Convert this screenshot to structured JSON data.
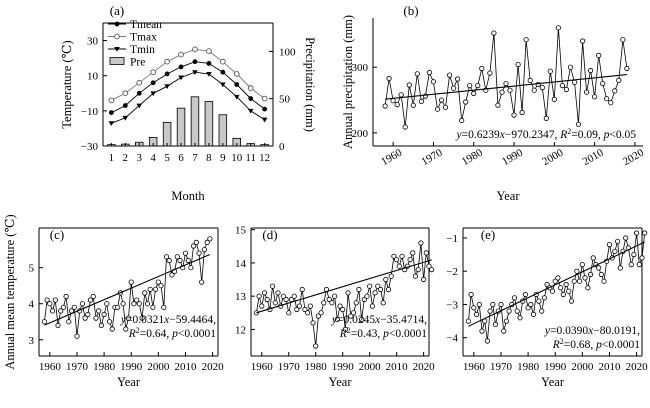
{
  "chart_data": [
    {
      "panel": "a",
      "type": "line+bar",
      "panel_label": "(a)",
      "xlabel": "Month",
      "ylabel": "Temperature (℃)",
      "y2label": "Precipitation (mm)",
      "categories": [
        "1",
        "2",
        "3",
        "4",
        "5",
        "6",
        "7",
        "8",
        "9",
        "10",
        "11",
        "12"
      ],
      "ylim": [
        -30,
        40
      ],
      "yticks": [
        -30,
        -10,
        10,
        30
      ],
      "y2lim": [
        0,
        130
      ],
      "y2ticks": [
        0,
        50,
        100
      ],
      "series": [
        {
          "name": "Tmean",
          "kind": "line",
          "marker": "filled-circle",
          "values": [
            -11,
            -7,
            0,
            6,
            11,
            15,
            18,
            17,
            12,
            5,
            -3,
            -9
          ]
        },
        {
          "name": "Tmax",
          "kind": "line",
          "marker": "open-circle",
          "values": [
            -4,
            0,
            6,
            12,
            18,
            22,
            25,
            24,
            18,
            11,
            3,
            -3
          ]
        },
        {
          "name": "Tmin",
          "kind": "line",
          "marker": "triangle",
          "values": [
            -17,
            -14,
            -7,
            0,
            4,
            9,
            12,
            11,
            5,
            -2,
            -10,
            -15
          ]
        },
        {
          "name": "Pre",
          "kind": "bar",
          "axis": "y2",
          "values": [
            1.5,
            2,
            4,
            9,
            25,
            40,
            52,
            47,
            33,
            8,
            2.5,
            1.5
          ]
        }
      ],
      "legend": {
        "position": "top-left",
        "entries": [
          "Tmean",
          "Tmax",
          "Tmin",
          "Pre"
        ]
      }
    },
    {
      "panel": "b",
      "type": "line",
      "panel_label": "(b)",
      "xlabel": "Year",
      "ylabel": "Annual precipitation (mm)",
      "xlim": [
        1955,
        2022
      ],
      "xticks": [
        1960,
        1970,
        1980,
        1990,
        2000,
        2010,
        2020
      ],
      "ylim": [
        180,
        375
      ],
      "yticks": [
        200,
        300
      ],
      "x_start": 1958,
      "values": [
        241,
        283,
        249,
        243,
        258,
        209,
        273,
        242,
        290,
        248,
        256,
        292,
        278,
        236,
        250,
        239,
        288,
        268,
        282,
        219,
        247,
        272,
        260,
        272,
        298,
        265,
        291,
        352,
        242,
        262,
        275,
        265,
        227,
        304,
        231,
        342,
        280,
        265,
        274,
        269,
        222,
        294,
        251,
        360,
        272,
        266,
        300,
        277,
        213,
        340,
        262,
        295,
        255,
        318,
        275,
        252,
        246,
        264,
        280,
        342,
        298
      ],
      "trend": {
        "slope": 0.6239,
        "intercept": -970.2347
      },
      "equation": "y=0.6239x−970.2347, R²=0.09, p<0.05"
    },
    {
      "panel": "c",
      "type": "line",
      "panel_label": "(c)",
      "xlabel": "Year",
      "ylabel": "Annual mean temperature (℃)",
      "xlim": [
        1956,
        2022
      ],
      "xticks": [
        1960,
        1970,
        1980,
        1990,
        2000,
        2010,
        2020
      ],
      "ylim": [
        2.55,
        6.1
      ],
      "yticks": [
        3,
        4,
        5
      ],
      "x_start": 1958,
      "values": [
        3.5,
        4.1,
        4.0,
        3.8,
        4.1,
        3.4,
        3.8,
        3.9,
        4.2,
        3.5,
        3.8,
        3.9,
        3.1,
        3.8,
        4.0,
        3.6,
        3.7,
        4.1,
        4.2,
        3.6,
        3.8,
        3.4,
        3.7,
        4.0,
        3.5,
        3.3,
        3.9,
        3.9,
        4.3,
        4.0,
        3.3,
        3.6,
        4.6,
        4.0,
        4.1,
        4.0,
        3.6,
        4.3,
        4.0,
        4.4,
        3.9,
        4.4,
        4.6,
        4.5,
        3.9,
        5.3,
        5.2,
        4.8,
        4.9,
        5.3,
        5.2,
        5.0,
        5.4,
        5.2,
        5.0,
        5.6,
        5.7,
        5.4,
        4.6,
        5.5,
        5.7,
        5.8
      ],
      "trend": {
        "slope": 0.0321,
        "intercept": -59.4464
      },
      "equation": [
        "y=0.0321x−59.4464,",
        "R²=0.64, p<0.0001"
      ]
    },
    {
      "panel": "d",
      "type": "line",
      "panel_label": "(d)",
      "xlabel": "Year",
      "ylabel": "",
      "xlim": [
        1956,
        2022
      ],
      "xticks": [
        1960,
        1970,
        1980,
        1990,
        2000,
        2010,
        2020
      ],
      "ylim": [
        11.2,
        15.05
      ],
      "yticks": [
        12,
        13,
        14,
        15
      ],
      "x_start": 1958,
      "values": [
        12.5,
        13.0,
        12.7,
        13.1,
        12.9,
        12.6,
        13.3,
        12.8,
        13.1,
        12.7,
        13.0,
        12.9,
        12.5,
        12.9,
        13.0,
        12.6,
        12.7,
        13.2,
        12.6,
        12.5,
        12.7,
        12.2,
        11.5,
        12.4,
        12.5,
        12.8,
        13.2,
        12.9,
        12.8,
        13.0,
        12.3,
        12.7,
        12.6,
        12.0,
        13.1,
        12.4,
        12.5,
        12.8,
        13.2,
        12.3,
        12.9,
        13.0,
        13.3,
        12.7,
        13.1,
        13.3,
        13.2,
        12.8,
        13.5,
        13.2,
        13.6,
        14.2,
        14.1,
        13.9,
        14.2,
        13.8,
        13.9,
        14.1,
        14.3,
        13.6,
        13.8,
        14.6,
        13.5,
        14.3,
        13.9,
        13.8
      ],
      "trend": {
        "slope": 0.0245,
        "intercept": -35.4714
      },
      "equation": [
        "y=0.0245x−35.4714,",
        "R²=0.43, p<0.0001"
      ]
    },
    {
      "panel": "e",
      "type": "line",
      "panel_label": "(e)",
      "xlabel": "Year",
      "ylabel": "",
      "xlim": [
        1956,
        2022
      ],
      "xticks": [
        1960,
        1970,
        1980,
        1990,
        2000,
        2010,
        2020
      ],
      "ylim": [
        -4.55,
        -0.7
      ],
      "yticks": [
        -4,
        -3,
        -2,
        -1
      ],
      "x_start": 1958,
      "values": [
        -3.5,
        -2.7,
        -3.1,
        -3.3,
        -3.0,
        -3.8,
        -3.5,
        -4.1,
        -3.2,
        -3.0,
        -3.6,
        -3.2,
        -3.0,
        -3.8,
        -3.5,
        -3.2,
        -3.0,
        -2.8,
        -3.2,
        -3.4,
        -2.9,
        -2.7,
        -3.1,
        -3.0,
        -3.3,
        -2.7,
        -2.9,
        -3.2,
        -2.8,
        -2.4,
        -2.5,
        -2.6,
        -2.3,
        -2.2,
        -2.5,
        -2.7,
        -2.4,
        -2.6,
        -2.9,
        -2.3,
        -2.0,
        -2.3,
        -1.8,
        -2.2,
        -2.5,
        -2.1,
        -1.6,
        -1.8,
        -1.9,
        -2.1,
        -2.3,
        -1.7,
        -1.2,
        -1.6,
        -1.4,
        -1.1,
        -1.9,
        -1.4,
        -1.0,
        -1.3,
        -1.8,
        -1.5,
        -0.85,
        -1.8,
        -1.6,
        -0.85
      ],
      "trend": {
        "slope": 0.039,
        "intercept": -80.0191
      },
      "equation": [
        "y=0.0390x−80.0191,",
        "R²=0.68, p<0.0001"
      ]
    }
  ]
}
